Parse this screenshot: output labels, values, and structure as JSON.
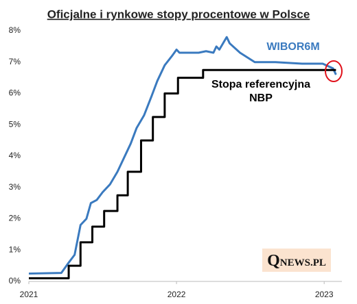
{
  "chart_data": {
    "type": "line",
    "title": "Oficjalne i rynkowe stopy procentowe w Polsce",
    "watermark": "QNEWS.PL",
    "xlim": [
      2021,
      2023.12
    ],
    "xticks": [
      2021,
      2022,
      2023
    ],
    "ylim": [
      0,
      8
    ],
    "yticks": [
      {
        "value": 0,
        "label": "0%"
      },
      {
        "value": 1,
        "label": "1%"
      },
      {
        "value": 2,
        "label": "2%"
      },
      {
        "value": 3,
        "label": "3%"
      },
      {
        "value": 4,
        "label": "4%"
      },
      {
        "value": 5,
        "label": "5%"
      },
      {
        "value": 6,
        "label": "6%"
      },
      {
        "value": 7,
        "label": "7%"
      },
      {
        "value": 8,
        "label": "8%"
      }
    ],
    "grid": false,
    "series": [
      {
        "name": "WIBOR6M",
        "color": "#3a7abf",
        "x": [
          2021.0,
          2021.22,
          2021.27,
          2021.31,
          2021.35,
          2021.39,
          2021.42,
          2021.46,
          2021.5,
          2021.55,
          2021.6,
          2021.64,
          2021.69,
          2021.73,
          2021.78,
          2021.83,
          2021.87,
          2021.92,
          2021.97,
          2022.0,
          2022.02,
          2022.06,
          2022.15,
          2022.2,
          2022.25,
          2022.27,
          2022.29,
          2022.34,
          2022.36,
          2022.43,
          2022.53,
          2022.67,
          2022.85,
          2022.99,
          2023.06,
          2023.08
        ],
        "values": [
          0.25,
          0.27,
          0.6,
          0.85,
          1.8,
          2.0,
          2.5,
          2.6,
          2.85,
          3.1,
          3.5,
          3.9,
          4.4,
          4.9,
          5.3,
          5.9,
          6.4,
          6.9,
          7.2,
          7.4,
          7.3,
          7.3,
          7.3,
          7.35,
          7.3,
          7.5,
          7.4,
          7.8,
          7.6,
          7.3,
          7.0,
          7.0,
          6.95,
          6.95,
          6.8,
          6.6
        ]
      },
      {
        "name": "Stopa referencyjna NBP",
        "color": "#000000",
        "x": [
          2021.0,
          2021.27,
          2021.27,
          2021.35,
          2021.35,
          2021.43,
          2021.43,
          2021.51,
          2021.51,
          2021.6,
          2021.6,
          2021.67,
          2021.67,
          2021.76,
          2021.76,
          2021.84,
          2021.84,
          2021.92,
          2021.92,
          2022.01,
          2022.01,
          2022.18,
          2022.18,
          2023.08
        ],
        "values": [
          0.1,
          0.1,
          0.5,
          0.5,
          1.25,
          1.25,
          1.75,
          1.75,
          2.25,
          2.25,
          2.75,
          2.75,
          3.5,
          3.5,
          4.5,
          4.5,
          5.25,
          5.25,
          6.0,
          6.0,
          6.5,
          6.5,
          6.75,
          6.75
        ]
      }
    ]
  }
}
